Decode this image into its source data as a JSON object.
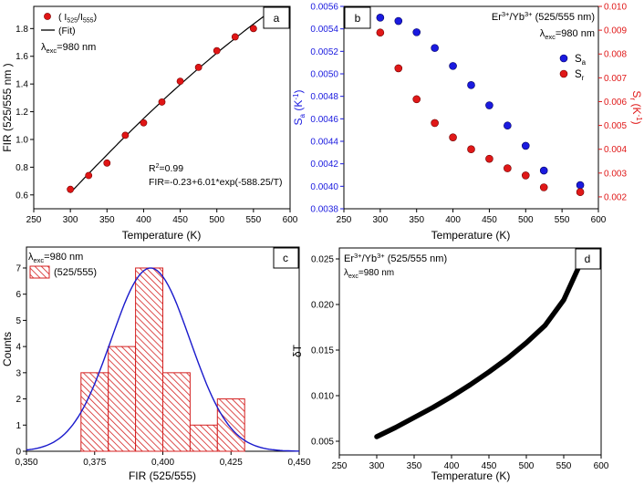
{
  "chart_data": [
    {
      "id": "a",
      "type": "scatter",
      "panel_label": "a",
      "xlabel": "Temperature (K)",
      "ylabel": "FIR (525/555 nm )",
      "xlim": [
        250,
        600
      ],
      "ylim": [
        0.5,
        1.96
      ],
      "xticks": [
        250,
        300,
        350,
        400,
        450,
        500,
        550,
        600
      ],
      "yticks": [
        0.6,
        0.8,
        1.0,
        1.2,
        1.4,
        1.6,
        1.8
      ],
      "legend": {
        "data_prefix": "( I",
        "data_sub1": "525",
        "data_mid": "/I",
        "data_sub2": "555",
        "data_suffix": ")",
        "fit": "(Fit)"
      },
      "annotation_lambda": {
        "main": "λ",
        "sub": "exc",
        "rest": "=980 nm"
      },
      "annotation_r2": {
        "main": "R",
        "sup": "2",
        "rest": "=0.99"
      },
      "annotation_formula": "FIR=-0.23+6.01*exp(-588.25/T)",
      "x": [
        300,
        325,
        350,
        375,
        400,
        425,
        450,
        475,
        500,
        525,
        550,
        575
      ],
      "y": [
        0.64,
        0.74,
        0.83,
        1.03,
        1.12,
        1.27,
        1.42,
        1.52,
        1.64,
        1.74,
        1.8,
        1.9
      ],
      "fit": {
        "a": -0.23,
        "b": 6.01,
        "c": -588.25,
        "x_from": 300,
        "x_to": 575
      }
    },
    {
      "id": "b",
      "type": "scatter",
      "panel_label": "b",
      "xlabel": "Temperature (K)",
      "ylabel_left": {
        "main": "S",
        "sub": "a",
        "rest": " (K",
        "sup": "-1",
        "end": ")"
      },
      "ylabel_right": {
        "main": "S",
        "sub": "r",
        "rest": " (K",
        "sup": "-1",
        "end": ")"
      },
      "xlim": [
        250,
        600
      ],
      "ylim_left": [
        0.0038,
        0.0056
      ],
      "ylim_right": [
        0.0015,
        0.01
      ],
      "xticks": [
        250,
        300,
        350,
        400,
        450,
        500,
        550,
        600
      ],
      "yticks_left": [
        "0.0038",
        "0.0040",
        "0.0042",
        "0.0044",
        "0.0046",
        "0.0048",
        "0.0050",
        "0.0052",
        "0.0054",
        "0.0056"
      ],
      "yticks_right": [
        "0.002",
        "0.003",
        "0.004",
        "0.005",
        "0.006",
        "0.007",
        "0.008",
        "0.009",
        "0.010"
      ],
      "title_prefix": "Er",
      "title_sup1": "3+",
      "title_mid": "/Yb",
      "title_sup2": "3+",
      "title_suffix": " (525/555 nm)",
      "annotation_lambda": {
        "main": "λ",
        "sub": "exc",
        "rest": "=980 nm"
      },
      "series": [
        {
          "name": "S",
          "sub": "a",
          "axis": "left",
          "color": "#1a1adf",
          "x": [
            300,
            325,
            350,
            375,
            400,
            425,
            450,
            475,
            500,
            525,
            575
          ],
          "y": [
            0.0055,
            0.00547,
            0.00537,
            0.00523,
            0.00507,
            0.0049,
            0.00472,
            0.00454,
            0.00436,
            0.00414,
            0.00401
          ]
        },
        {
          "name": "S",
          "sub": "r",
          "axis": "right",
          "color": "#e01818",
          "x": [
            300,
            325,
            350,
            375,
            400,
            425,
            450,
            475,
            500,
            525,
            575
          ],
          "y": [
            0.0089,
            0.0074,
            0.0061,
            0.0051,
            0.0045,
            0.004,
            0.0036,
            0.0032,
            0.0029,
            0.0024,
            0.0022
          ]
        }
      ]
    },
    {
      "id": "c",
      "type": "bar",
      "panel_label": "c",
      "xlabel": "FIR (525/555)",
      "ylabel": "Counts",
      "xlim": [
        0.35,
        0.45
      ],
      "ylim": [
        0,
        7.8
      ],
      "xticks": [
        0.35,
        0.375,
        0.4,
        0.425,
        0.45
      ],
      "xtick_labels": [
        "0,350",
        "0,375",
        "0,400",
        "0,425",
        "0,450"
      ],
      "yticks": [
        0,
        1,
        2,
        3,
        4,
        5,
        6,
        7
      ],
      "annotation_lambda": {
        "main": "λ",
        "sub": "exc",
        "rest": "=980 nm"
      },
      "legend_label": "(525/555)",
      "bin_edges": [
        0.37,
        0.38,
        0.39,
        0.4,
        0.41,
        0.42,
        0.43
      ],
      "counts": [
        3,
        4,
        7,
        3,
        1,
        2
      ],
      "normal_fit": {
        "mean": 0.3955,
        "sd": 0.0145,
        "peak": 7.0
      }
    },
    {
      "id": "d",
      "type": "line",
      "panel_label": "d",
      "xlabel": "Temperature (K)",
      "ylabel": "δT",
      "xlim": [
        250,
        600
      ],
      "ylim": [
        0.0035,
        0.0262
      ],
      "xticks": [
        250,
        300,
        350,
        400,
        450,
        500,
        550,
        600
      ],
      "yticks": [
        "0.005",
        "0.010",
        "0.015",
        "0.020",
        "0.025"
      ],
      "title_prefix": "Er",
      "title_sup1": "3+",
      "title_mid": "/Yb",
      "title_sup2": "3+",
      "title_suffix": " (525/555 nm)",
      "annotation_lambda": {
        "main": "λ",
        "sub": "exc",
        "rest": "=980 nm"
      },
      "x": [
        300,
        325,
        350,
        375,
        400,
        425,
        450,
        475,
        500,
        525,
        550,
        575
      ],
      "y": [
        0.0055,
        0.0065,
        0.0076,
        0.0087,
        0.0099,
        0.0112,
        0.0126,
        0.0141,
        0.0158,
        0.0177,
        0.0205,
        0.025
      ]
    }
  ]
}
